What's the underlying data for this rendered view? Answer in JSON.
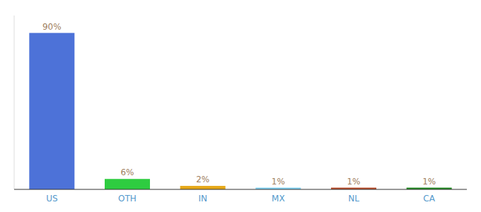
{
  "chart_data": {
    "type": "bar",
    "categories": [
      "US",
      "OTH",
      "IN",
      "MX",
      "NL",
      "CA"
    ],
    "values": [
      90,
      6,
      2,
      1,
      1,
      1
    ],
    "value_labels": [
      "90%",
      "6%",
      "2%",
      "1%",
      "1%",
      "1%"
    ],
    "data_labels": true,
    "colors": [
      "#4d72d8",
      "#2ecc40",
      "#e6a817",
      "#7ecff0",
      "#b84c2a",
      "#228B22"
    ],
    "ylim": [
      0,
      100
    ],
    "tick_labels": "x"
  }
}
